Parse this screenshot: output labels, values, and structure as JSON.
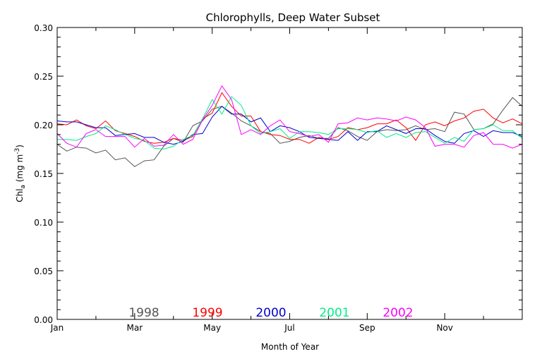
{
  "chart_data": {
    "type": "line",
    "title": "Chlorophylls, Deep Water Subset",
    "xlabel": "Month of Year",
    "ylabel_main": "Chl",
    "ylabel_sub": "a",
    "ylabel_units_open": " (mg m",
    "ylabel_units_sup": "-3",
    "ylabel_units_close": ")",
    "xlim": [
      0,
      12
    ],
    "ylim": [
      0.0,
      0.3
    ],
    "x_ticks": [
      {
        "value": 0,
        "label": "Jan"
      },
      {
        "value": 2,
        "label": "Mar"
      },
      {
        "value": 4,
        "label": "May"
      },
      {
        "value": 6,
        "label": "Jul"
      },
      {
        "value": 8,
        "label": "Sep"
      },
      {
        "value": 10,
        "label": "Nov"
      }
    ],
    "y_ticks": [
      {
        "value": 0.0,
        "label": "0.00"
      },
      {
        "value": 0.05,
        "label": "0.05"
      },
      {
        "value": 0.1,
        "label": "0.10"
      },
      {
        "value": 0.15,
        "label": "0.15"
      },
      {
        "value": 0.2,
        "label": "0.20"
      },
      {
        "value": 0.25,
        "label": "0.25"
      },
      {
        "value": 0.3,
        "label": "0.30"
      }
    ],
    "grid": false,
    "legend": "bottom",
    "x": [
      0,
      0.25,
      0.5,
      0.75,
      1,
      1.25,
      1.5,
      1.75,
      2,
      2.25,
      2.5,
      2.75,
      3,
      3.25,
      3.5,
      3.75,
      4,
      4.25,
      4.5,
      4.75,
      5,
      5.25,
      5.5,
      5.75,
      6,
      6.25,
      6.5,
      6.75,
      7,
      7.25,
      7.5,
      7.75,
      8,
      8.25,
      8.5,
      8.75,
      9,
      9.25,
      9.5,
      9.75,
      10,
      10.25,
      10.5,
      10.75,
      11,
      11.25,
      11.5,
      11.75,
      12
    ],
    "series": [
      {
        "name": "1998",
        "color": "#555555",
        "values": [
          0.18,
          0.173,
          0.177,
          0.176,
          0.171,
          0.174,
          0.164,
          0.166,
          0.157,
          0.163,
          0.164,
          0.178,
          0.186,
          0.182,
          0.199,
          0.204,
          0.216,
          0.219,
          0.212,
          0.204,
          0.199,
          0.193,
          0.191,
          0.181,
          0.183,
          0.187,
          0.189,
          0.186,
          0.186,
          0.197,
          0.194,
          0.188,
          0.184,
          0.193,
          0.195,
          0.194,
          0.195,
          0.199,
          0.195,
          0.196,
          0.193,
          0.213,
          0.211,
          0.195,
          0.196,
          0.201,
          0.215,
          0.228,
          0.219
        ]
      },
      {
        "name": "1999",
        "color": "#ff0000",
        "values": [
          0.201,
          0.2,
          0.205,
          0.199,
          0.196,
          0.204,
          0.194,
          0.191,
          0.188,
          0.183,
          0.181,
          0.182,
          0.186,
          0.184,
          0.188,
          0.206,
          0.212,
          0.233,
          0.219,
          0.209,
          0.209,
          0.193,
          0.19,
          0.189,
          0.185,
          0.185,
          0.181,
          0.187,
          0.185,
          0.188,
          0.197,
          0.195,
          0.197,
          0.201,
          0.201,
          0.205,
          0.197,
          0.184,
          0.2,
          0.203,
          0.199,
          0.204,
          0.207,
          0.214,
          0.216,
          0.207,
          0.202,
          0.206,
          0.201
        ]
      },
      {
        "name": "2000",
        "color": "#0000cc",
        "values": [
          0.204,
          0.203,
          0.203,
          0.2,
          0.197,
          0.197,
          0.189,
          0.19,
          0.191,
          0.187,
          0.187,
          0.182,
          0.18,
          0.183,
          0.19,
          0.191,
          0.208,
          0.219,
          0.211,
          0.211,
          0.203,
          0.207,
          0.193,
          0.199,
          0.197,
          0.193,
          0.187,
          0.186,
          0.185,
          0.184,
          0.193,
          0.184,
          0.193,
          0.193,
          0.199,
          0.195,
          0.191,
          0.196,
          0.196,
          0.189,
          0.183,
          0.181,
          0.191,
          0.194,
          0.188,
          0.194,
          0.192,
          0.192,
          0.188
        ]
      },
      {
        "name": "2001",
        "color": "#00ee88",
        "values": [
          0.185,
          0.185,
          0.184,
          0.188,
          0.191,
          0.199,
          0.195,
          0.19,
          0.186,
          0.184,
          0.176,
          0.175,
          0.178,
          0.185,
          0.189,
          0.206,
          0.226,
          0.211,
          0.229,
          0.22,
          0.199,
          0.191,
          0.193,
          0.196,
          0.186,
          0.193,
          0.193,
          0.192,
          0.19,
          0.196,
          0.196,
          0.195,
          0.192,
          0.194,
          0.187,
          0.191,
          0.187,
          0.192,
          0.193,
          0.187,
          0.181,
          0.187,
          0.183,
          0.195,
          0.196,
          0.2,
          0.194,
          0.194,
          0.186
        ]
      },
      {
        "name": "2002",
        "color": "#ff00ff",
        "values": [
          0.191,
          0.181,
          0.177,
          0.191,
          0.195,
          0.188,
          0.188,
          0.188,
          0.177,
          0.186,
          0.178,
          0.179,
          0.19,
          0.18,
          0.185,
          0.205,
          0.22,
          0.24,
          0.226,
          0.19,
          0.195,
          0.19,
          0.199,
          0.205,
          0.193,
          0.191,
          0.188,
          0.19,
          0.182,
          0.201,
          0.202,
          0.207,
          0.205,
          0.207,
          0.206,
          0.204,
          0.208,
          0.205,
          0.197,
          0.178,
          0.18,
          0.18,
          0.177,
          0.189,
          0.192,
          0.18,
          0.18,
          0.176,
          0.18
        ]
      }
    ]
  }
}
